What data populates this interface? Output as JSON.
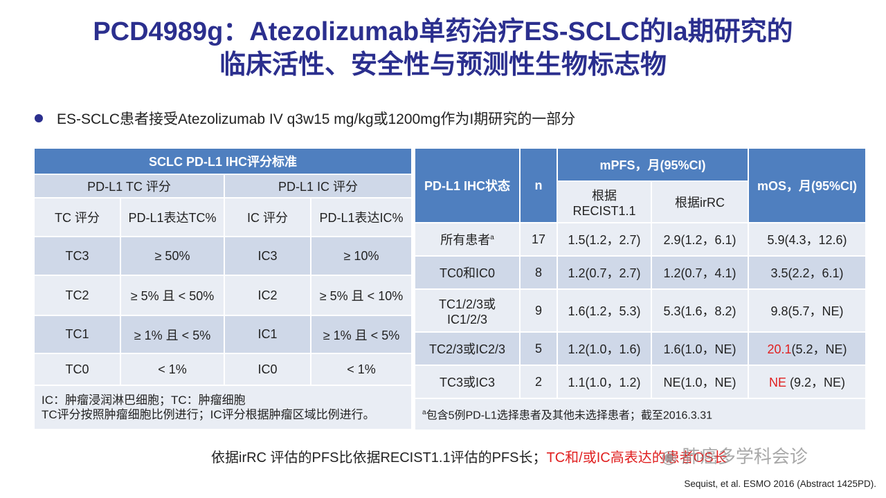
{
  "title": {
    "line1": "PCD4989g：Atezolizumab单药治疗ES-SCLC的Ia期研究的",
    "line2": "临床活性、安全性与预测性生物标志物"
  },
  "bullet": "ES-SCLC患者接受Atezolizumab IV q3w15 mg/kg或1200mg作为I期研究的一部分",
  "left_table": {
    "header": "SCLC PD-L1 IHC评分标准",
    "group_tc": "PD-L1 TC 评分",
    "group_ic": "PD-L1 IC 评分",
    "col_tc": "TC 评分",
    "col_tc_pct": "PD-L1表达TC%",
    "col_ic": "IC 评分",
    "col_ic_pct": "PD-L1表达IC%",
    "rows": [
      {
        "tc": "TC3",
        "tcp": "≥ 50%",
        "ic": "IC3",
        "icp": "≥ 10%"
      },
      {
        "tc": "TC2",
        "tcp": "≥ 5% 且 < 50%",
        "ic": "IC2",
        "icp": "≥ 5% 且 < 10%"
      },
      {
        "tc": "TC1",
        "tcp": "≥ 1% 且 < 5%",
        "ic": "IC1",
        "icp": "≥ 1% 且 < 5%"
      },
      {
        "tc": "TC0",
        "tcp": "< 1%",
        "ic": "IC0",
        "icp": "< 1%"
      }
    ],
    "note1": "IC：肿瘤浸润淋巴细胞；TC：肿瘤细胞",
    "note2": "TC评分按照肿瘤细胞比例进行；IC评分根据肿瘤区域比例进行。"
  },
  "right_table": {
    "col_status": "PD-L1 IHC状态",
    "col_n": "n",
    "col_mpfs": "mPFS，月(95%CI)",
    "col_recist_1": "根据",
    "col_recist_2": "RECIST1.1",
    "col_irrc": "根据irRC",
    "col_mos": "mOS，月(95%CI)",
    "rows": [
      {
        "status": "所有患者",
        "sup": "a",
        "n": "17",
        "recist": "1.5(1.2，2.7)",
        "irrc": "2.9(1.2，6.1)",
        "mos_hl": "",
        "mos": "5.9(4.3，12.6)"
      },
      {
        "status": "TC0和IC0",
        "sup": "",
        "n": "8",
        "recist": "1.2(0.7，2.7)",
        "irrc": "1.2(0.7，4.1)",
        "mos_hl": "",
        "mos": "3.5(2.2，6.1)"
      },
      {
        "status": "TC1/2/3或",
        "status2": "IC1/2/3",
        "sup": "",
        "n": "9",
        "recist": "1.6(1.2，5.3)",
        "irrc": "5.3(1.6，8.2)",
        "mos_hl": "",
        "mos": "9.8(5.7，NE)"
      },
      {
        "status": "TC2/3或IC2/3",
        "sup": "",
        "n": "5",
        "recist": "1.2(1.0，1.6)",
        "irrc": "1.6(1.0，NE)",
        "mos_hl": "20.1",
        "mos": "(5.2，NE)"
      },
      {
        "status": "TC3或IC3",
        "sup": "",
        "n": "2",
        "recist": "1.1(1.0，1.2)",
        "irrc": "NE(1.0，NE)",
        "mos_hl": "NE",
        "mos": " (9.2，NE)"
      }
    ],
    "footnote_sup": "a",
    "footnote": "包含5例PD-L1选择患者及其他未选择患者；截至2016.3.31"
  },
  "bottom": {
    "text": "依据irRC 评估的PFS比依据RECIST1.1评估的PFS长；",
    "red": "TC和/或IC高表达的患者OS长"
  },
  "watermark": "肺癌多学科会诊",
  "reference": "Sequist, et al. ESMO 2016 (Abstract 1425PD)."
}
